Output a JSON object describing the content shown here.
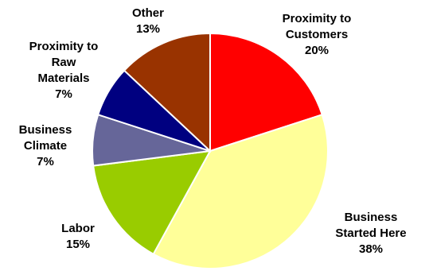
{
  "chart_data": {
    "type": "pie",
    "title": "",
    "start_angle_deg": 0,
    "direction": "clockwise",
    "slices": [
      {
        "label_lines": [
          "Proximity to",
          "Customers",
          "20%"
        ],
        "value": 20,
        "color": "#FF0000"
      },
      {
        "label_lines": [
          "Business",
          "Started Here",
          "38%"
        ],
        "value": 38,
        "color": "#FFFF99"
      },
      {
        "label_lines": [
          "Labor",
          "15%"
        ],
        "value": 15,
        "color": "#99CC00"
      },
      {
        "label_lines": [
          "Business",
          "Climate",
          "7%"
        ],
        "value": 7,
        "color": "#666699"
      },
      {
        "label_lines": [
          "Proximity to",
          "Raw",
          "Materials",
          "7%"
        ],
        "value": 7,
        "color": "#000080"
      },
      {
        "label_lines": [
          "Other",
          "13%"
        ],
        "value": 13,
        "color": "#993300"
      }
    ]
  }
}
